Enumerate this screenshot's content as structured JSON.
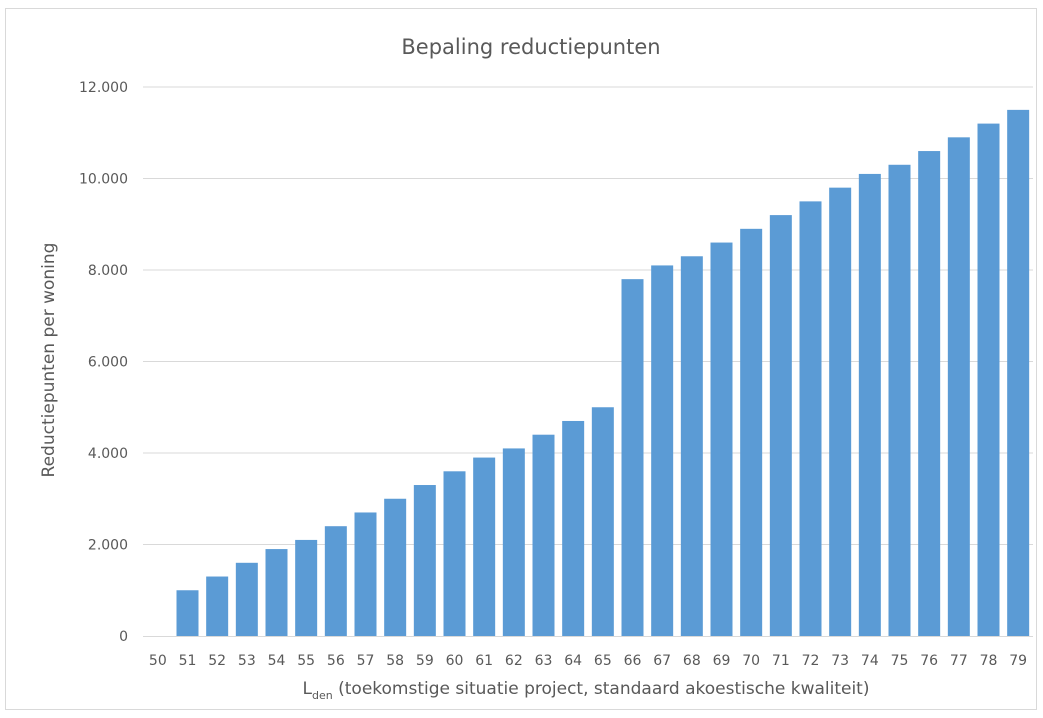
{
  "chart_data": {
    "type": "bar",
    "title": "Bepaling reductiepunten",
    "ylabel": "Reductiepunten per woning",
    "xlabel": {
      "main": "L",
      "subscript": "den",
      "rest": " (toekomstige situatie project, standaard akoestische kwaliteit)"
    },
    "ylim": [
      0,
      12000
    ],
    "yticks": [
      0,
      2000,
      4000,
      6000,
      8000,
      10000,
      12000
    ],
    "ytick_labels": [
      "0",
      "2.000",
      "4.000",
      "6.000",
      "8.000",
      "10.000",
      "12.000"
    ],
    "categories": [
      "50",
      "51",
      "52",
      "53",
      "54",
      "55",
      "56",
      "57",
      "58",
      "59",
      "60",
      "61",
      "62",
      "63",
      "64",
      "65",
      "66",
      "67",
      "68",
      "69",
      "70",
      "71",
      "72",
      "73",
      "74",
      "75",
      "76",
      "77",
      "78",
      "79"
    ],
    "values": [
      0,
      1000,
      1300,
      1600,
      1900,
      2100,
      2400,
      2700,
      3000,
      3300,
      3600,
      3900,
      4100,
      4400,
      4700,
      5000,
      7800,
      8100,
      8300,
      8600,
      8900,
      9200,
      9500,
      9800,
      10100,
      10300,
      10600,
      10900,
      11200,
      11500
    ],
    "bar_color": "#5b9bd5",
    "grid": true,
    "legend": "none"
  }
}
